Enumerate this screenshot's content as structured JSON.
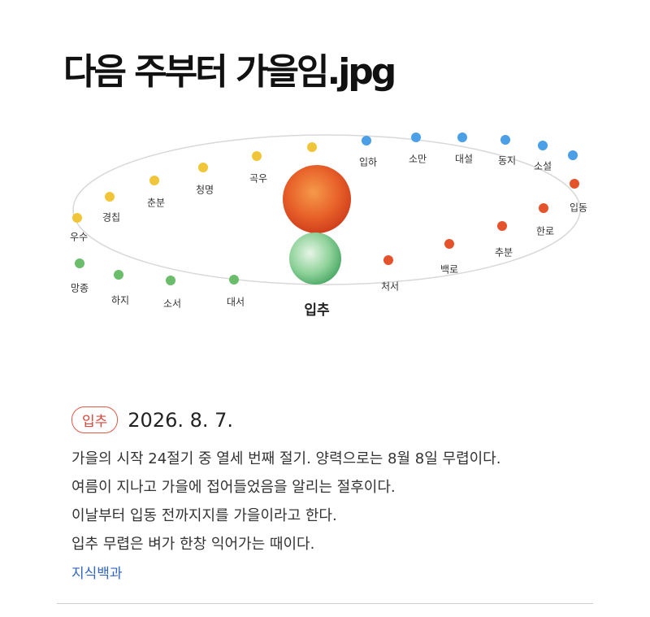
{
  "header": {
    "title": "다음 주부터 가을임.jpg"
  },
  "diagram": {
    "center_label": "입추",
    "groups": [
      {
        "color": "#f0c53a",
        "points": [
          "우수",
          "경칩",
          "춘분",
          "청명",
          "곡우",
          null
        ]
      },
      {
        "color": "#4a9fe6",
        "points": [
          "입하",
          "소만",
          "대설",
          "동지",
          "소설",
          null
        ]
      },
      {
        "color": "#e5532c",
        "points": [
          "입동",
          "한로",
          "추분",
          "백로",
          "처서"
        ]
      },
      {
        "color": "#6bbd6b",
        "points": [
          "망종",
          "하지",
          "소서",
          "대서"
        ]
      }
    ]
  },
  "info": {
    "tag": "입추",
    "date": "2026. 8. 7.",
    "lines": [
      "가을의 시작 24절기 중 열세 번째 절기. 양력으로는 8월 8일 무렵이다.",
      "여름이 지나고 가을에 접어들었음을 알리는 절후이다.",
      "이날부터 입동 전까지지를 가을이라고 한다.",
      "입추 무렵은 벼가 한창 익어가는 때이다."
    ],
    "link": "지식백과"
  }
}
